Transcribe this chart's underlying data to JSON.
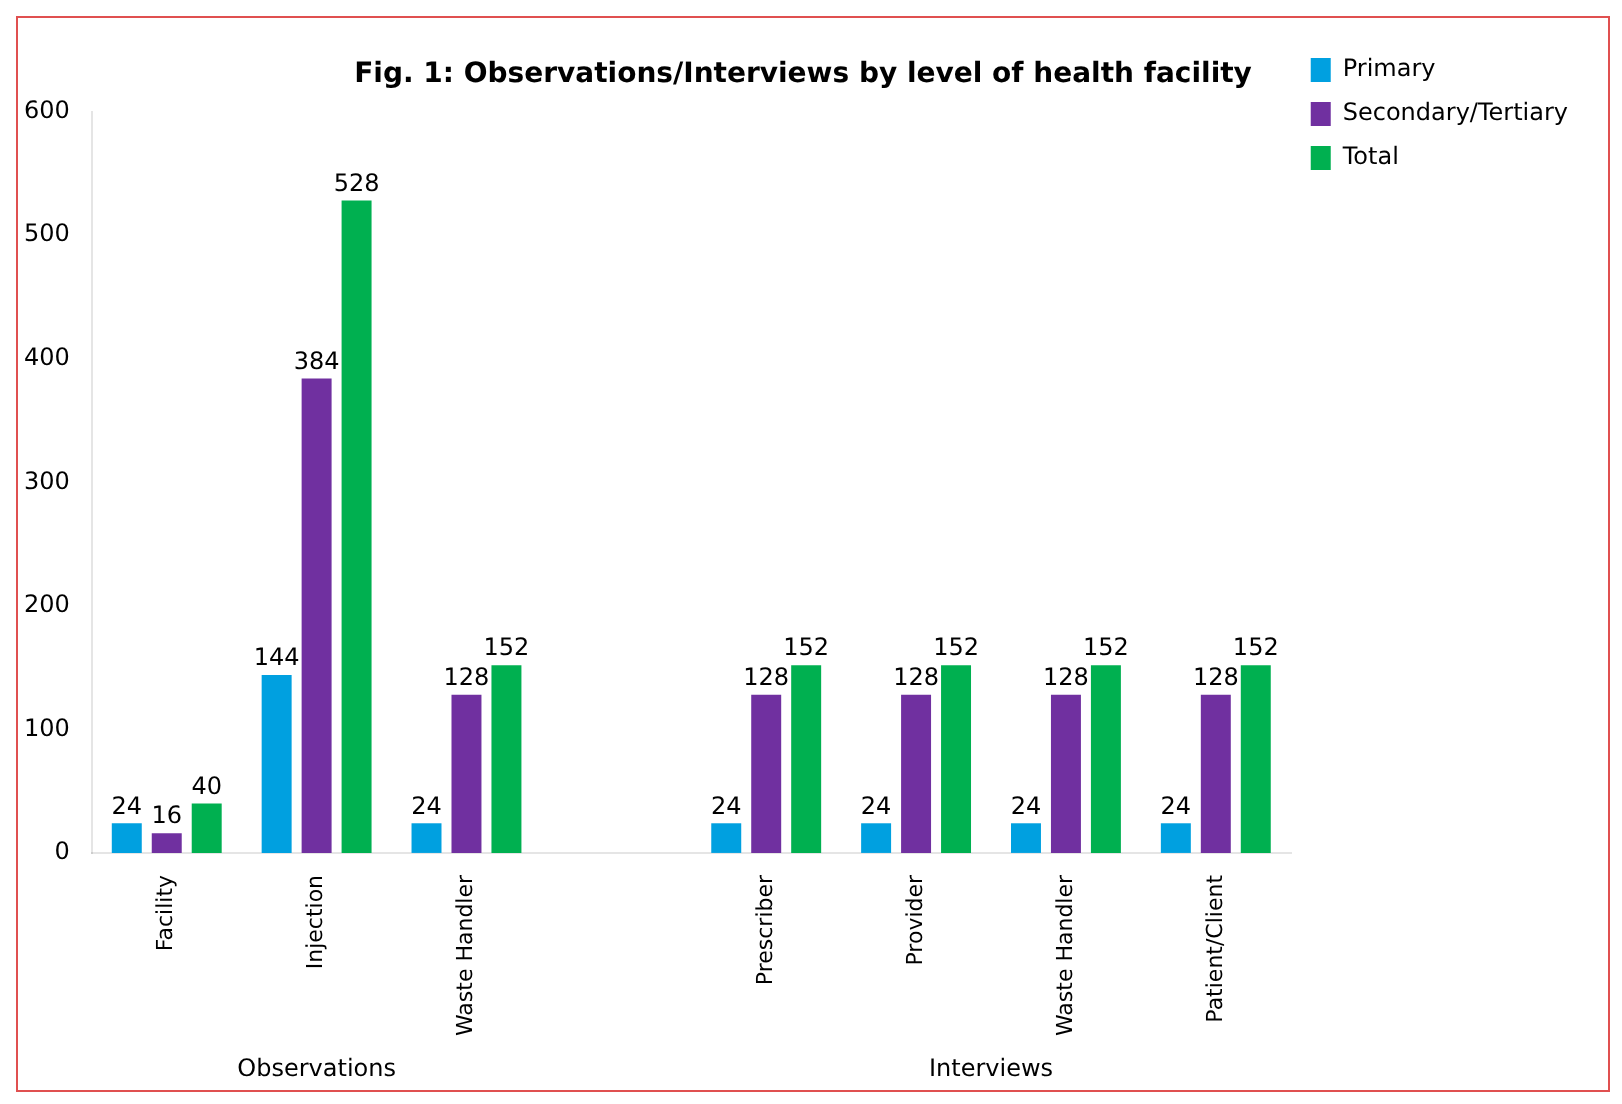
{
  "chart_data": {
    "type": "bar",
    "title": "Fig. 1: Observations/Interviews by level of health facility",
    "categories": [
      "Facility",
      "Injection",
      "Waste Handler",
      null,
      "Prescriber",
      "Provider",
      "Waste Handler",
      "Patient/Client"
    ],
    "series": [
      {
        "name": "Primary",
        "color": "#00a0e0",
        "values": [
          24,
          144,
          24,
          null,
          24,
          24,
          24,
          24
        ]
      },
      {
        "name": "Secondary/Tertiary",
        "color": "#7030a0",
        "values": [
          16,
          384,
          128,
          null,
          128,
          128,
          128,
          128
        ]
      },
      {
        "name": "Total",
        "color": "#00b050",
        "values": [
          40,
          528,
          152,
          null,
          152,
          152,
          152,
          152
        ]
      }
    ],
    "ylim": [
      0,
      600
    ],
    "yticks": [
      0,
      100,
      200,
      300,
      400,
      500,
      600
    ],
    "data_labels": true,
    "legend": "top right",
    "annotations": [
      "Observations",
      "Interviews"
    ]
  }
}
